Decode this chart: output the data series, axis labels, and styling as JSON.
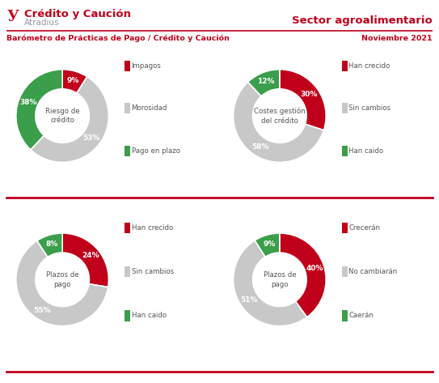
{
  "title_main": "Crédito y Caución",
  "title_sub": "Atradius",
  "sector_label": "Sector agroalimentario",
  "barometro_label": "Barómetro de Prácticas de Pago / Crédito y Caución",
  "date_label": "Noviembre 2021",
  "charts": [
    {
      "values": [
        9,
        53,
        38
      ],
      "colors": [
        "#c0001a",
        "#c8c8c8",
        "#3a9e4a"
      ],
      "labels": [
        "Impagos",
        "Morosidad",
        "Pago en plazo"
      ],
      "center_text": "Riesgo de\ncrédito",
      "pct_labels": [
        "9%",
        "53%",
        "38%"
      ],
      "startangle": 90
    },
    {
      "values": [
        30,
        58,
        12
      ],
      "colors": [
        "#c0001a",
        "#c8c8c8",
        "#3a9e4a"
      ],
      "labels": [
        "Han crecido",
        "Sin cambios",
        "Han caido"
      ],
      "center_text": "Costes gestión\ndel crédito",
      "pct_labels": [
        "30%",
        "58%",
        "12%"
      ],
      "startangle": 90
    },
    {
      "values": [
        24,
        55,
        8
      ],
      "colors": [
        "#c0001a",
        "#c8c8c8",
        "#3a9e4a"
      ],
      "labels": [
        "Han crecido",
        "Sin cambios",
        "Han caido"
      ],
      "center_text": "Plazos de\npago",
      "pct_labels": [
        "24%",
        "55%",
        "8%"
      ],
      "startangle": 90
    },
    {
      "values": [
        40,
        51,
        9
      ],
      "colors": [
        "#c0001a",
        "#c8c8c8",
        "#3a9e4a"
      ],
      "labels": [
        "Crecerán",
        "No cambiarán",
        "Caerán"
      ],
      "center_text": "Plazos de\npago",
      "pct_labels": [
        "40%",
        "51%",
        "9%"
      ],
      "startangle": 90
    }
  ],
  "bg_color": "#ffffff",
  "text_color": "#555555",
  "red_color": "#c0001a",
  "donut_width": 0.42
}
